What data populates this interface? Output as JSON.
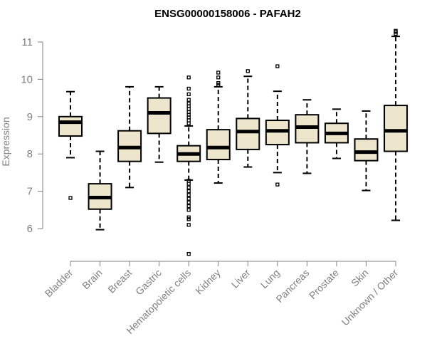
{
  "chart_data": {
    "type": "boxplot",
    "title": "ENSG00000158006 - PAFAH2",
    "xlabel": "",
    "ylabel": "Expression",
    "ylim": [
      5.1,
      11.3
    ],
    "yticks": [
      6,
      7,
      8,
      9,
      10,
      11
    ],
    "box_color": "#ede6cd",
    "median_color": "#000000",
    "categories": [
      "Bladder",
      "Brain",
      "Breast",
      "Gastric",
      "Hematopoietic cells",
      "Kidney",
      "Liver",
      "Lung",
      "Pancreas",
      "Prostate",
      "Skin",
      "Unknown / Other"
    ],
    "boxes": [
      {
        "name": "Bladder",
        "whisker_low": 7.9,
        "q1": 8.48,
        "median": 8.85,
        "q3": 9.0,
        "whisker_high": 9.67,
        "outliers": [
          6.82
        ]
      },
      {
        "name": "Brain",
        "whisker_low": 5.97,
        "q1": 6.52,
        "median": 6.83,
        "q3": 7.2,
        "whisker_high": 8.07,
        "outliers": []
      },
      {
        "name": "Breast",
        "whisker_low": 7.1,
        "q1": 7.8,
        "median": 8.17,
        "q3": 8.62,
        "whisker_high": 9.8,
        "outliers": []
      },
      {
        "name": "Gastric",
        "whisker_low": 7.78,
        "q1": 8.55,
        "median": 9.1,
        "q3": 9.5,
        "whisker_high": 9.8,
        "outliers": []
      },
      {
        "name": "Hematopoietic cells",
        "whisker_low": 7.3,
        "q1": 7.8,
        "median": 8.0,
        "q3": 8.22,
        "whisker_high": 8.75,
        "outliers": [
          10.05,
          9.75,
          9.6,
          9.45,
          9.35,
          9.28,
          9.2,
          9.12,
          9.05,
          8.98,
          8.9,
          8.82,
          7.28,
          7.2,
          7.1,
          7.0,
          6.9,
          6.8,
          6.7,
          6.6,
          6.5,
          6.3,
          6.25,
          6.1,
          5.32
        ]
      },
      {
        "name": "Kidney",
        "whisker_low": 7.22,
        "q1": 7.85,
        "median": 8.17,
        "q3": 8.65,
        "whisker_high": 9.8,
        "outliers": [
          10.18,
          10.05,
          9.9,
          9.85
        ]
      },
      {
        "name": "Liver",
        "whisker_low": 7.65,
        "q1": 8.12,
        "median": 8.6,
        "q3": 8.95,
        "whisker_high": 10.08,
        "outliers": [
          10.22
        ]
      },
      {
        "name": "Lung",
        "whisker_low": 7.5,
        "q1": 8.25,
        "median": 8.62,
        "q3": 8.9,
        "whisker_high": 9.68,
        "outliers": [
          10.35,
          7.18
        ]
      },
      {
        "name": "Pancreas",
        "whisker_low": 7.48,
        "q1": 8.3,
        "median": 8.72,
        "q3": 9.05,
        "whisker_high": 9.45,
        "outliers": []
      },
      {
        "name": "Prostate",
        "whisker_low": 7.88,
        "q1": 8.3,
        "median": 8.55,
        "q3": 8.82,
        "whisker_high": 9.2,
        "outliers": []
      },
      {
        "name": "Skin",
        "whisker_low": 7.02,
        "q1": 7.82,
        "median": 8.05,
        "q3": 8.4,
        "whisker_high": 9.15,
        "outliers": []
      },
      {
        "name": "Unknown / Other",
        "whisker_low": 6.22,
        "q1": 8.07,
        "median": 8.62,
        "q3": 9.3,
        "whisker_high": 11.15,
        "outliers": [
          11.3,
          11.27,
          11.22
        ]
      }
    ]
  }
}
